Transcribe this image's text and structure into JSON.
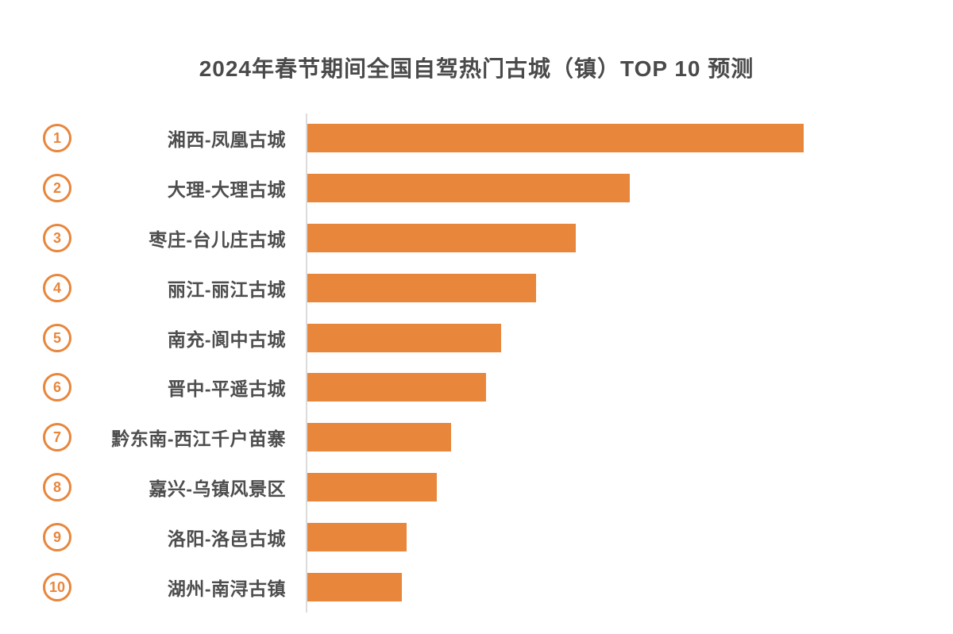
{
  "title": "2024年春节期间全国自驾热门古城（镇）TOP 10 预测",
  "colors": {
    "bar": "#E8863C",
    "accent": "#E8863C",
    "title_text": "#4A4A4A",
    "label_text": "#4D4D4D",
    "axis_line": "#DCDCDC",
    "background": "#FFFFFF"
  },
  "chart_data": {
    "type": "bar",
    "orientation": "horizontal",
    "title": "2024年春节期间全国自驾热门古城（镇）TOP 10 预测",
    "xlabel": "",
    "ylabel": "",
    "grid": false,
    "legend": false,
    "value_unit": "percent_of_longest_bar (no numeric axis or data labels shown; lengths estimated from pixels)",
    "ranks": [
      "1",
      "2",
      "3",
      "4",
      "5",
      "6",
      "7",
      "8",
      "9",
      "10"
    ],
    "categories": [
      "湘西-凤凰古城",
      "大理-大理古城",
      "枣庄-台儿庄古城",
      "丽江-丽江古城",
      "南充-阆中古城",
      "晋中-平遥古城",
      "黔东南-西江千户苗寨",
      "嘉兴-乌镇风景区",
      "洛阳-洛邑古城",
      "湖州-南浔古镇"
    ],
    "values": [
      100,
      65,
      54,
      46,
      39,
      36,
      29,
      26,
      20,
      19
    ]
  }
}
